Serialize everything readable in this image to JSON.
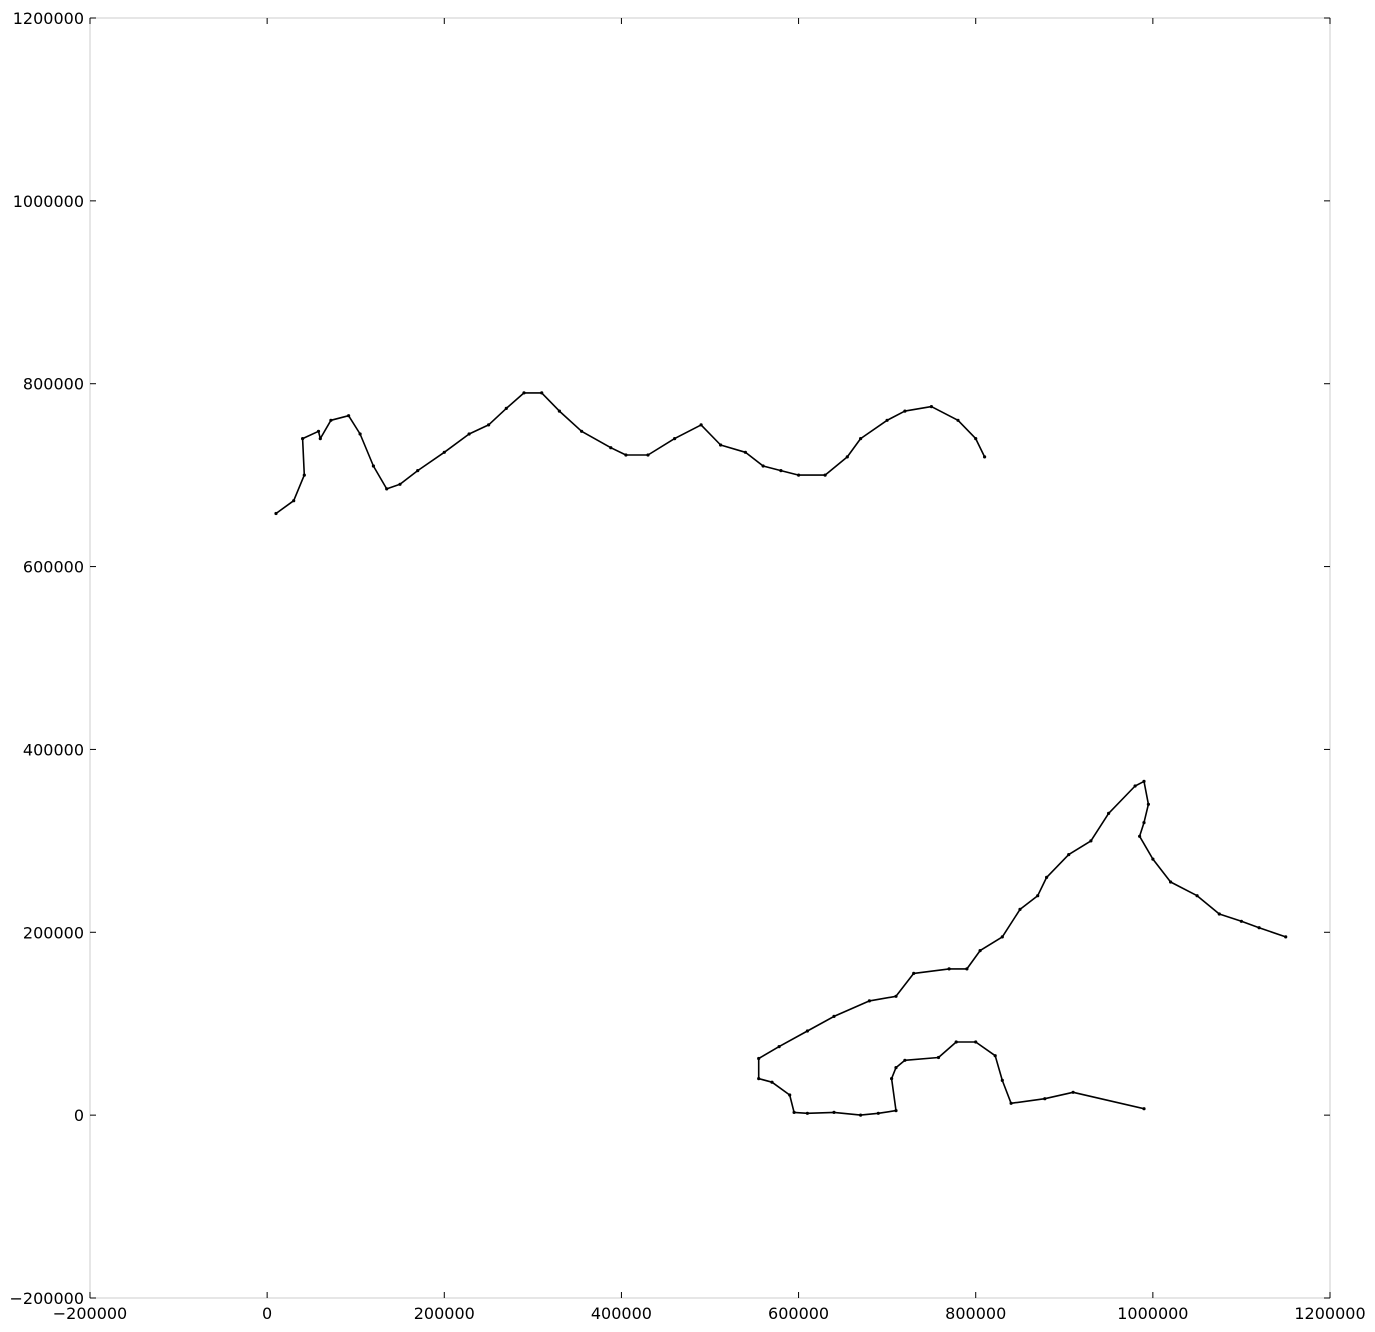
{
  "chart_data": {
    "type": "line",
    "title": "",
    "xlabel": "",
    "ylabel": "",
    "xlim": [
      -200000,
      1200000
    ],
    "ylim": [
      -200000,
      1200000
    ],
    "grid": false,
    "x_ticks": [
      "-200000",
      "0",
      "200000",
      "400000",
      "600000",
      "800000",
      "1000000",
      "1200000"
    ],
    "y_ticks": [
      "1200000",
      "1000000",
      "800000",
      "600000",
      "400000",
      "200000",
      "0",
      "-200000"
    ],
    "x_tick_values": [
      -200000,
      0,
      200000,
      400000,
      600000,
      800000,
      1000000,
      1200000
    ],
    "y_tick_values": [
      1200000,
      1000000,
      800000,
      600000,
      400000,
      200000,
      0,
      -200000
    ],
    "series": [
      {
        "style": "black line with point markers (tour path)",
        "points": [
          [
            990000,
            7000
          ],
          [
            910000,
            25000
          ],
          [
            878000,
            18000
          ],
          [
            840000,
            13000
          ],
          [
            830000,
            38000
          ],
          [
            822000,
            65000
          ],
          [
            800000,
            80000
          ],
          [
            778000,
            80000
          ],
          [
            758000,
            63000
          ],
          [
            720000,
            60000
          ],
          [
            710000,
            52000
          ],
          [
            705000,
            40000
          ],
          [
            710000,
            5000
          ],
          [
            690000,
            2000
          ],
          [
            670000,
            0
          ],
          [
            640000,
            3000
          ],
          [
            610000,
            2000
          ],
          [
            595000,
            3000
          ],
          [
            590000,
            22000
          ],
          [
            570000,
            36000
          ],
          [
            555000,
            40000
          ],
          [
            555000,
            62000
          ],
          [
            578000,
            75000
          ],
          [
            610000,
            92000
          ],
          [
            640000,
            108000
          ],
          [
            680000,
            125000
          ],
          [
            710000,
            130000
          ],
          [
            730000,
            155000
          ],
          [
            770000,
            160000
          ],
          [
            790000,
            160000
          ],
          [
            805000,
            180000
          ],
          [
            830000,
            195000
          ],
          [
            850000,
            225000
          ],
          [
            870000,
            240000
          ],
          [
            880000,
            260000
          ],
          [
            905000,
            285000
          ],
          [
            930000,
            300000
          ],
          [
            950000,
            330000
          ],
          [
            980000,
            360000
          ],
          [
            990000,
            365000
          ],
          [
            995000,
            340000
          ],
          [
            990000,
            320000
          ],
          [
            985000,
            305000
          ],
          [
            1000000,
            280000
          ],
          [
            1020000,
            255000
          ],
          [
            1050000,
            240000
          ],
          [
            1075000,
            220000
          ],
          [
            1100000,
            212000
          ],
          [
            1120000,
            205000
          ],
          [
            1150000,
            195000
          ]
        ]
      },
      {
        "style": "black line with point markers (tour path)",
        "points": [
          [
            10000,
            658000
          ],
          [
            30000,
            672000
          ],
          [
            42000,
            700000
          ],
          [
            40000,
            740000
          ],
          [
            58000,
            748000
          ],
          [
            60000,
            740000
          ],
          [
            72000,
            760000
          ],
          [
            92000,
            765000
          ],
          [
            105000,
            745000
          ],
          [
            120000,
            710000
          ],
          [
            135000,
            685000
          ],
          [
            150000,
            690000
          ],
          [
            170000,
            705000
          ],
          [
            200000,
            725000
          ],
          [
            228000,
            745000
          ],
          [
            250000,
            755000
          ],
          [
            270000,
            773000
          ],
          [
            290000,
            790000
          ],
          [
            310000,
            790000
          ],
          [
            330000,
            770000
          ],
          [
            355000,
            748000
          ],
          [
            388000,
            730000
          ],
          [
            405000,
            722000
          ],
          [
            430000,
            722000
          ],
          [
            460000,
            740000
          ],
          [
            490000,
            755000
          ],
          [
            512000,
            733000
          ],
          [
            540000,
            725000
          ],
          [
            560000,
            710000
          ],
          [
            580000,
            705000
          ],
          [
            600000,
            700000
          ],
          [
            630000,
            700000
          ],
          [
            655000,
            720000
          ],
          [
            670000,
            740000
          ],
          [
            700000,
            760000
          ],
          [
            720000,
            770000
          ],
          [
            750000,
            775000
          ],
          [
            780000,
            760000
          ],
          [
            800000,
            740000
          ],
          [
            810000,
            720000
          ]
        ]
      }
    ]
  }
}
